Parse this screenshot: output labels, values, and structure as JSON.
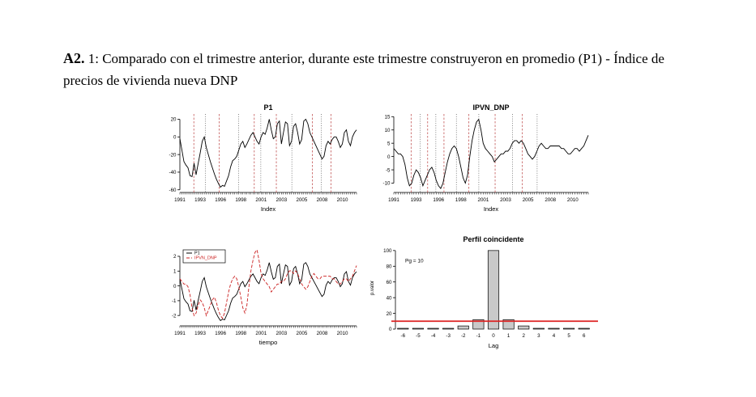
{
  "doc": {
    "heading_bold": "A2.",
    "heading_text": " 1: Comparado con el trimestre anterior, durante este trimestre construyeron en promedio (P1) - Índice de precios de vivienda nueva  DNP"
  },
  "colors": {
    "red_vline": "#c25555",
    "dark_vline": "#666666",
    "sig_line": "#dd2222",
    "series_black": "#000000",
    "series_red": "#cc2222",
    "bar_fill": "#c9c9c9"
  },
  "series_data": {
    "P1": [
      -2,
      -15,
      -28,
      -32,
      -35,
      -44,
      -45,
      -30,
      -43,
      -30,
      -18,
      -5,
      0,
      -12,
      -20,
      -28,
      -35,
      -42,
      -48,
      -53,
      -57,
      -55,
      -56,
      -50,
      -44,
      -34,
      -27,
      -25,
      -22,
      -15,
      -8,
      -5,
      -12,
      -8,
      -3,
      2,
      5,
      0,
      -5,
      -8,
      0,
      5,
      3,
      10,
      20,
      8,
      -2,
      0,
      15,
      18,
      -8,
      5,
      17,
      15,
      -10,
      -5,
      12,
      15,
      5,
      -8,
      -3,
      18,
      20,
      15,
      5,
      0,
      -5,
      -10,
      -15,
      -20,
      -25,
      -22,
      -10,
      -5,
      -8,
      -3,
      0,
      0,
      -5,
      -12,
      -8,
      5,
      8,
      -5,
      -10,
      0,
      5,
      8
    ],
    "IPVN_DNP": [
      3,
      2,
      1,
      1,
      0,
      -3,
      -8,
      -11,
      -10,
      -7,
      -5,
      -6,
      -8,
      -11,
      -9,
      -7,
      -5,
      -4,
      -6,
      -9,
      -11,
      -12,
      -10,
      -6,
      -2,
      1,
      3,
      4,
      3,
      0,
      -4,
      -8,
      -10,
      -7,
      0,
      6,
      10,
      13,
      14,
      10,
      5,
      3,
      2,
      1,
      0,
      -2,
      -1,
      0,
      1,
      1,
      2,
      2,
      3,
      5,
      6,
      6,
      5,
      6,
      5,
      3,
      1,
      0,
      -1,
      0,
      2,
      4,
      5,
      4,
      3,
      3,
      4,
      4,
      4,
      4,
      4,
      3,
      3,
      2,
      1,
      1,
      2,
      3,
      3,
      2,
      3,
      4,
      6,
      8
    ]
  },
  "chart_data": [
    {
      "type": "line",
      "title": "P1",
      "xlabel": "Index",
      "ylim": [
        -63,
        26
      ],
      "yticks": [
        20,
        0,
        -20,
        -40,
        -60
      ],
      "xlabels": [
        {
          "f": 0.0,
          "t": "1991"
        },
        {
          "f": 0.115,
          "t": "1993"
        },
        {
          "f": 0.23,
          "t": "1996"
        },
        {
          "f": 0.345,
          "t": "1998"
        },
        {
          "f": 0.46,
          "t": "2001"
        },
        {
          "f": 0.575,
          "t": "2003"
        },
        {
          "f": 0.69,
          "t": "2005"
        },
        {
          "f": 0.805,
          "t": "2008"
        },
        {
          "f": 0.92,
          "t": "2010"
        }
      ],
      "vlines": [
        {
          "f": 0.079,
          "c": "red"
        },
        {
          "f": 0.144,
          "c": "dark"
        },
        {
          "f": 0.222,
          "c": "red"
        },
        {
          "f": 0.333,
          "c": "dark"
        },
        {
          "f": 0.421,
          "c": "red"
        },
        {
          "f": 0.458,
          "c": "dark"
        },
        {
          "f": 0.546,
          "c": "red"
        },
        {
          "f": 0.634,
          "c": "dark"
        },
        {
          "f": 0.75,
          "c": "red"
        },
        {
          "f": 0.8,
          "c": "dark"
        },
        {
          "f": 0.856,
          "c": "red"
        }
      ],
      "series": [
        {
          "name": "P1",
          "ref": "P1",
          "color": "#000000"
        }
      ]
    },
    {
      "type": "line",
      "title": "IPVN_DNP",
      "xlabel": "Index",
      "ylim": [
        -13.5,
        16
      ],
      "yticks": [
        15,
        10,
        5,
        0,
        -5,
        -10
      ],
      "xlabels": [
        {
          "f": 0.0,
          "t": "1991"
        },
        {
          "f": 0.115,
          "t": "1993"
        },
        {
          "f": 0.23,
          "t": "1996"
        },
        {
          "f": 0.345,
          "t": "1998"
        },
        {
          "f": 0.46,
          "t": "2001"
        },
        {
          "f": 0.575,
          "t": "2003"
        },
        {
          "f": 0.69,
          "t": "2005"
        },
        {
          "f": 0.805,
          "t": "2008"
        },
        {
          "f": 0.92,
          "t": "2010"
        }
      ],
      "vlines": [
        {
          "f": 0.089,
          "c": "red"
        },
        {
          "f": 0.136,
          "c": "dark"
        },
        {
          "f": 0.174,
          "c": "red"
        },
        {
          "f": 0.216,
          "c": "dark"
        },
        {
          "f": 0.258,
          "c": "red"
        },
        {
          "f": 0.322,
          "c": "dark"
        },
        {
          "f": 0.386,
          "c": "red"
        },
        {
          "f": 0.437,
          "c": "dark"
        },
        {
          "f": 0.521,
          "c": "red"
        },
        {
          "f": 0.61,
          "c": "dark"
        },
        {
          "f": 0.661,
          "c": "red"
        },
        {
          "f": 0.737,
          "c": "dark"
        }
      ],
      "series": [
        {
          "name": "IPVN_DNP",
          "ref": "IPVN_DNP",
          "color": "#000000"
        }
      ]
    },
    {
      "type": "line",
      "title": "",
      "xlabel": "tiempo",
      "ylim": [
        -2.7,
        2.6
      ],
      "yticks": [
        2,
        1,
        0,
        -1,
        -2
      ],
      "xlabels": [
        {
          "f": 0.0,
          "t": "1991"
        },
        {
          "f": 0.115,
          "t": "1993"
        },
        {
          "f": 0.23,
          "t": "1996"
        },
        {
          "f": 0.345,
          "t": "1998"
        },
        {
          "f": 0.46,
          "t": "2001"
        },
        {
          "f": 0.575,
          "t": "2003"
        },
        {
          "f": 0.69,
          "t": "2005"
        },
        {
          "f": 0.805,
          "t": "2008"
        },
        {
          "f": 0.92,
          "t": "2010"
        }
      ],
      "vlines": [],
      "legend": [
        {
          "label": "P1",
          "color": "#000000",
          "dash": ""
        },
        {
          "label": "IPVN_DNP",
          "color": "#cc2222",
          "dash": "4,2"
        }
      ],
      "series": [
        {
          "name": "P1",
          "ref": "P1",
          "color": "#000000",
          "std": true
        },
        {
          "name": "IPVN_DNP",
          "ref": "IPVN_DNP",
          "color": "#cc2222",
          "std": true,
          "dash": "4,2"
        }
      ]
    },
    {
      "type": "bar",
      "title": "Perfil coincidente",
      "xlabel": "Lag",
      "ylabel": "p.valor",
      "ylim": [
        0,
        105
      ],
      "yticks": [
        0,
        20,
        40,
        60,
        80,
        100
      ],
      "categories": [
        "-6",
        "-5",
        "-4",
        "-3",
        "-2",
        "-1",
        "0",
        "1",
        "2",
        "3",
        "4",
        "5",
        "6"
      ],
      "values": [
        1,
        1,
        1,
        1,
        4,
        12,
        100,
        12,
        4,
        1,
        1,
        1,
        1
      ],
      "sig_line": 10,
      "annotation": "Pg = 10"
    }
  ]
}
